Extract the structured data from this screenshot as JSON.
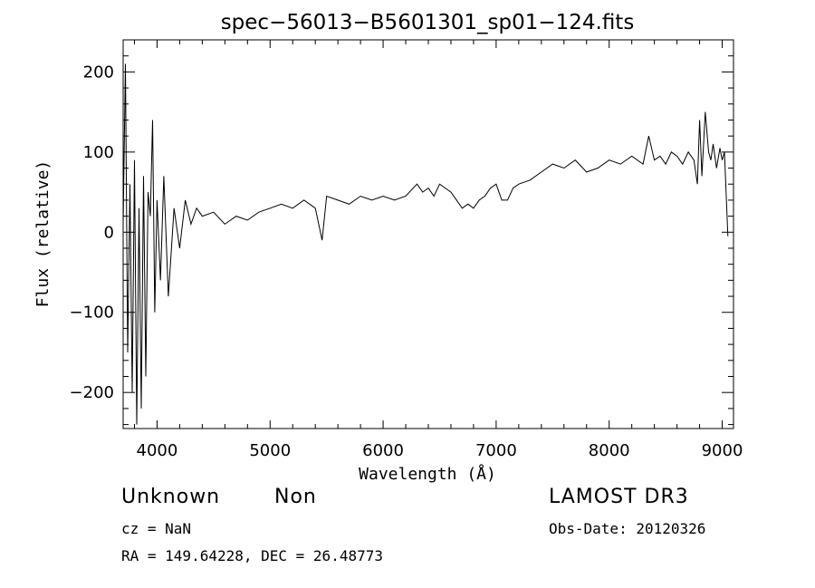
{
  "chart_data": {
    "type": "line",
    "title": "spec−56013−B5601301_sp01−124.fits",
    "xlabel": "Wavelength (Å)",
    "ylabel": "Flux (relative)",
    "xlim": [
      3700,
      9100
    ],
    "ylim": [
      -245,
      240
    ],
    "x_ticks": [
      4000,
      5000,
      6000,
      7000,
      8000,
      9000
    ],
    "y_ticks": [
      -200,
      -100,
      0,
      100,
      200
    ],
    "y_tick_labels": [
      "−200",
      "−100",
      "0",
      "100",
      "200"
    ],
    "grid": false,
    "series": [
      {
        "x": [
          3700,
          3720,
          3740,
          3760,
          3780,
          3800,
          3820,
          3840,
          3860,
          3880,
          3900,
          3920,
          3940,
          3960,
          3980,
          4000,
          4030,
          4060,
          4100,
          4150,
          4200,
          4250,
          4300,
          4350,
          4400,
          4500,
          4600,
          4700,
          4800,
          4900,
          5000,
          5100,
          5200,
          5300,
          5400,
          5460,
          5500,
          5600,
          5700,
          5800,
          5900,
          6000,
          6100,
          6200,
          6300,
          6350,
          6400,
          6450,
          6500,
          6550,
          6600,
          6650,
          6700,
          6750,
          6800,
          6850,
          6900,
          6950,
          7000,
          7050,
          7100,
          7150,
          7200,
          7300,
          7400,
          7500,
          7600,
          7700,
          7800,
          7900,
          8000,
          8100,
          8200,
          8300,
          8350,
          8400,
          8450,
          8500,
          8550,
          8600,
          8650,
          8700,
          8750,
          8780,
          8800,
          8820,
          8850,
          8880,
          8900,
          8920,
          8950,
          8980,
          9000,
          9020,
          9050
        ],
        "y": [
          10,
          210,
          -150,
          60,
          -200,
          90,
          -240,
          30,
          -220,
          70,
          -180,
          50,
          20,
          140,
          -100,
          40,
          -60,
          70,
          -80,
          30,
          -20,
          40,
          10,
          30,
          20,
          25,
          10,
          20,
          15,
          25,
          30,
          35,
          30,
          40,
          30,
          -10,
          45,
          40,
          35,
          45,
          40,
          45,
          40,
          45,
          60,
          50,
          55,
          45,
          60,
          55,
          50,
          40,
          30,
          35,
          30,
          40,
          45,
          55,
          60,
          40,
          40,
          55,
          60,
          65,
          75,
          85,
          80,
          90,
          75,
          80,
          90,
          85,
          95,
          85,
          120,
          90,
          95,
          85,
          100,
          95,
          85,
          100,
          90,
          60,
          140,
          70,
          150,
          100,
          90,
          110,
          80,
          105,
          90,
          100,
          -5
        ]
      }
    ]
  },
  "annotations": {
    "object_class": "Unknown",
    "subclass": "Non",
    "survey": "LAMOST DR3",
    "cz": "cz = NaN",
    "obs_date": "Obs-Date: 20120326",
    "coords": "RA = 149.64228, DEC =  26.48773"
  }
}
